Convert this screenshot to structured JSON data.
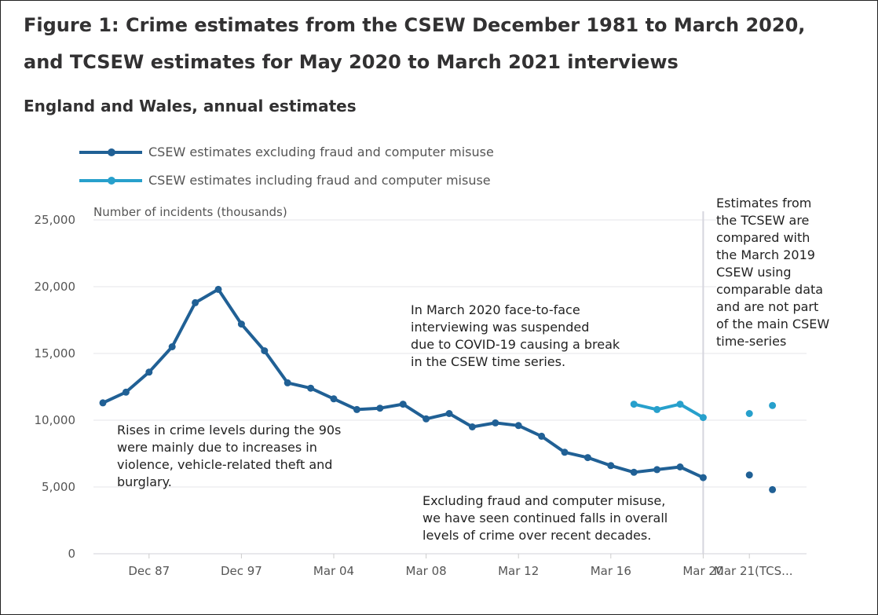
{
  "title": "Figure 1: Crime estimates from the CSEW December 1981 to March 2020, and TCSEW estimates for May 2020 to March 2021 interviews",
  "subtitle": "England and Wales, annual estimates",
  "chart_data": {
    "type": "line",
    "ylabel": "Number of incidents (thousands)",
    "ylim": [
      0,
      25000
    ],
    "yticks": [
      0,
      5000,
      10000,
      15000,
      20000,
      25000
    ],
    "ytick_labels": [
      "0",
      "5,000",
      "10,000",
      "15,000",
      "20,000",
      "25,000"
    ],
    "grid": true,
    "legend_position": "top-left",
    "xtick_labels": [
      {
        "index": 2,
        "label": "Dec 87"
      },
      {
        "index": 6,
        "label": "Dec 97"
      },
      {
        "index": 10,
        "label": "Mar 04"
      },
      {
        "index": 14,
        "label": "Mar 08"
      },
      {
        "index": 18,
        "label": "Mar 12"
      },
      {
        "index": 22,
        "label": "Mar 16"
      },
      {
        "index": 26,
        "label": "Mar 20"
      },
      {
        "index": 28,
        "label": "Mar 21(TCS..."
      }
    ],
    "series": [
      {
        "name": "CSEW estimates excluding fraud and computer misuse",
        "color": "#206095",
        "values": [
          11300,
          12100,
          13600,
          15500,
          18800,
          19800,
          17200,
          15200,
          12800,
          12400,
          11600,
          10800,
          10900,
          11200,
          10100,
          10500,
          9500,
          9800,
          9600,
          8800,
          7600,
          7200,
          6600,
          6100,
          6300,
          6500,
          5700,
          null,
          5900,
          4800
        ]
      },
      {
        "name": "CSEW estimates including fraud and computer misuse",
        "color": "#27a0cc",
        "values": [
          null,
          null,
          null,
          null,
          null,
          null,
          null,
          null,
          null,
          null,
          null,
          null,
          null,
          null,
          null,
          null,
          null,
          null,
          null,
          null,
          null,
          null,
          null,
          11200,
          10800,
          11200,
          10200,
          null,
          10500,
          11100
        ]
      }
    ],
    "annotations": [
      "Rises in crime levels during the 90s\nwere mainly due to increases in\nviolence, vehicle-related theft and\nburglary.",
      "In March 2020 face-to-face\ninterviewing was suspended\ndue to COVID-19 causing a break\nin the CSEW time series.",
      "Excluding fraud and computer misuse,\nwe have seen continued falls in overall\nlevels of crime over recent decades.",
      "Estimates from\nthe TCSEW are\ncompared with\nthe March 2019\nCSEW using\ncomparable data\nand are not part\nof the main CSEW\ntime-series"
    ]
  }
}
